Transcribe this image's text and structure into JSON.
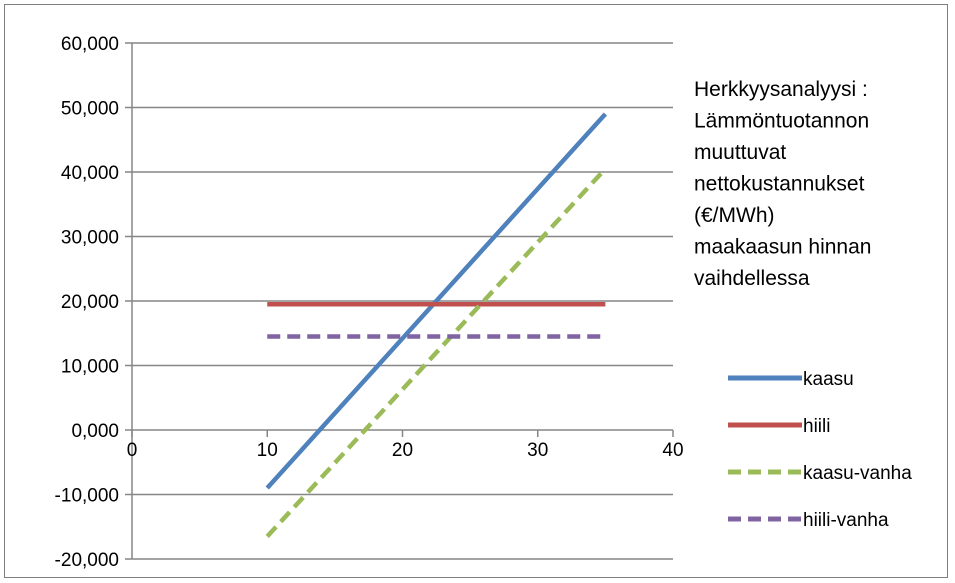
{
  "chart_data": {
    "type": "line",
    "title_lines": [
      "Herkkyysanalyysi :",
      "Lämmöntuotannon",
      "muuttuvat",
      "nettokustannukset",
      "(€/MWh)",
      "maakaasun hinnan",
      "vaihdellessa"
    ],
    "xlabel": "",
    "ylabel": "",
    "xlim": [
      0,
      40
    ],
    "ylim": [
      -20,
      60
    ],
    "x_ticks": [
      0,
      10,
      20,
      30,
      40
    ],
    "x_tick_labels": [
      "0",
      "10",
      "20",
      "30",
      "40"
    ],
    "y_ticks": [
      -20,
      -10,
      0,
      10,
      20,
      30,
      40,
      50,
      60
    ],
    "y_tick_labels": [
      "-20,000",
      "-10,000",
      "0,000",
      "10,000",
      "20,000",
      "30,000",
      "40,000",
      "50,000",
      "60,000"
    ],
    "grid": "horizontal",
    "legend_position": "right",
    "series": [
      {
        "name": "kaasu",
        "color": "#4f81bd",
        "dashed": false,
        "x": [
          10,
          35
        ],
        "y": [
          -9,
          49
        ]
      },
      {
        "name": "hiili",
        "color": "#c0504d",
        "dashed": false,
        "x": [
          10,
          35
        ],
        "y": [
          19.5,
          19.5
        ]
      },
      {
        "name": "kaasu-vanha",
        "color": "#9bbb59",
        "dashed": true,
        "x": [
          10,
          35
        ],
        "y": [
          -16.5,
          40.5
        ]
      },
      {
        "name": "hiili-vanha",
        "color": "#8064a2",
        "dashed": true,
        "x": [
          10,
          35
        ],
        "y": [
          14.5,
          14.5
        ]
      }
    ]
  }
}
